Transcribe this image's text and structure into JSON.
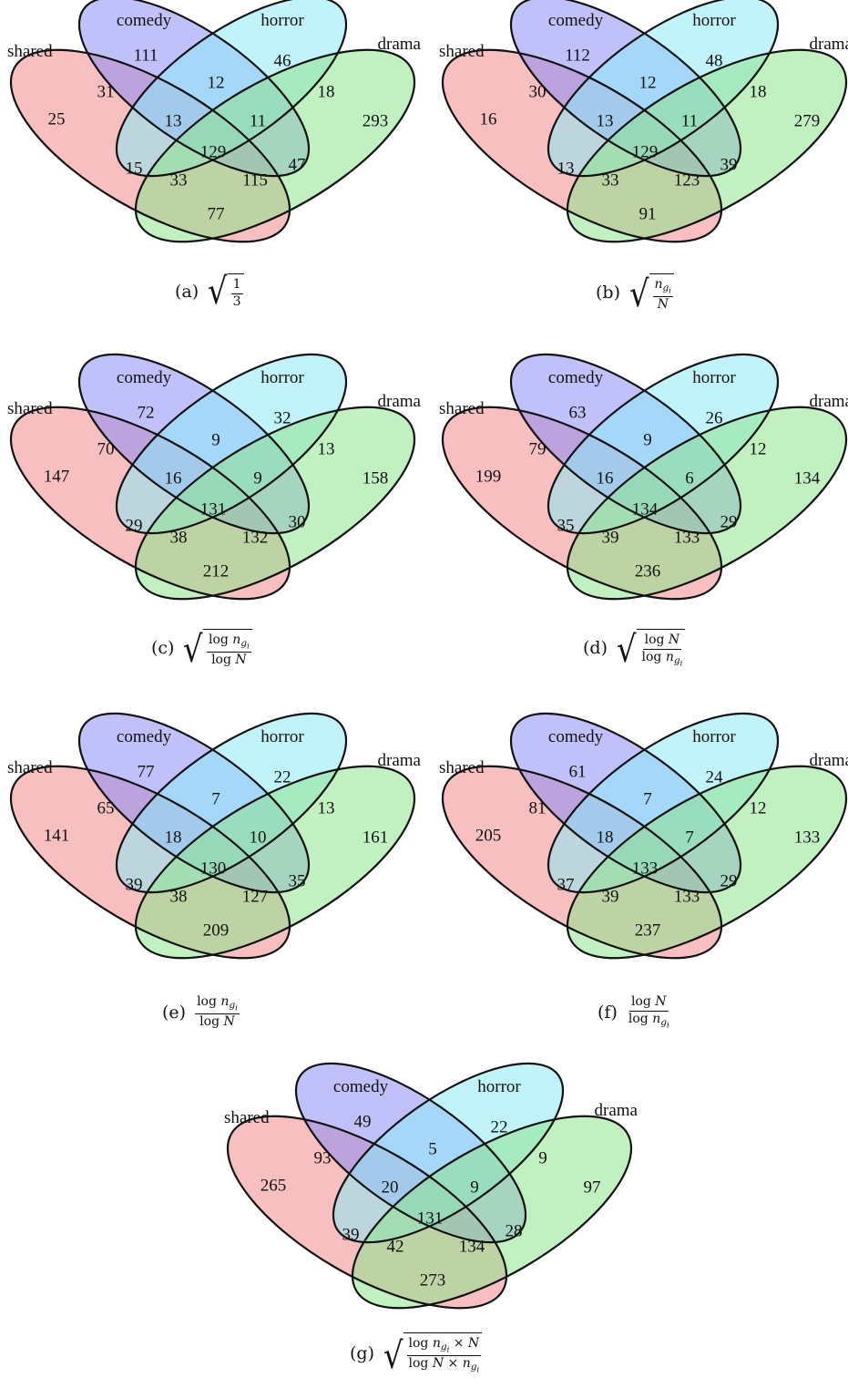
{
  "set_labels": {
    "shared": "shared",
    "comedy": "comedy",
    "horror": "horror",
    "drama": "drama"
  },
  "colors": {
    "shared": "#f08a8a",
    "comedy": "#8c8cf5",
    "horror": "#8ee9f5",
    "drama": "#8ee38e",
    "outline": "#111111"
  },
  "panels": [
    {
      "tag": "(a)",
      "region_counts": {
        "shared_only": "25",
        "comedy_only": "111",
        "horror_only": "46",
        "drama_only": "293",
        "shared_comedy": "31",
        "comedy_horror": "12",
        "horror_drama": "18",
        "shared_comedy_horror": "13",
        "comedy_horror_drama": "11",
        "shared_horror": "15",
        "comedy_drama": "47",
        "all_four": "129",
        "shared_horror_drama": "33",
        "shared_comedy_drama": "115",
        "shared_drama": "77"
      }
    },
    {
      "tag": "(b)",
      "region_counts": {
        "shared_only": "16",
        "comedy_only": "112",
        "horror_only": "48",
        "drama_only": "279",
        "shared_comedy": "30",
        "comedy_horror": "12",
        "horror_drama": "18",
        "shared_comedy_horror": "13",
        "comedy_horror_drama": "11",
        "shared_horror": "13",
        "comedy_drama": "39",
        "all_four": "129",
        "shared_horror_drama": "33",
        "shared_comedy_drama": "123",
        "shared_drama": "91"
      }
    },
    {
      "tag": "(c)",
      "region_counts": {
        "shared_only": "147",
        "comedy_only": "72",
        "horror_only": "32",
        "drama_only": "158",
        "shared_comedy": "70",
        "comedy_horror": "9",
        "horror_drama": "13",
        "shared_comedy_horror": "16",
        "comedy_horror_drama": "9",
        "shared_horror": "29",
        "comedy_drama": "30",
        "all_four": "131",
        "shared_horror_drama": "38",
        "shared_comedy_drama": "132",
        "shared_drama": "212"
      }
    },
    {
      "tag": "(d)",
      "region_counts": {
        "shared_only": "199",
        "comedy_only": "63",
        "horror_only": "26",
        "drama_only": "134",
        "shared_comedy": "79",
        "comedy_horror": "9",
        "horror_drama": "12",
        "shared_comedy_horror": "16",
        "comedy_horror_drama": "6",
        "shared_horror": "35",
        "comedy_drama": "29",
        "all_four": "134",
        "shared_horror_drama": "39",
        "shared_comedy_drama": "133",
        "shared_drama": "236"
      }
    },
    {
      "tag": "(e)",
      "region_counts": {
        "shared_only": "141",
        "comedy_only": "77",
        "horror_only": "22",
        "drama_only": "161",
        "shared_comedy": "65",
        "comedy_horror": "7",
        "horror_drama": "13",
        "shared_comedy_horror": "18",
        "comedy_horror_drama": "10",
        "shared_horror": "39",
        "comedy_drama": "35",
        "all_four": "130",
        "shared_horror_drama": "38",
        "shared_comedy_drama": "127",
        "shared_drama": "209"
      }
    },
    {
      "tag": "(f)",
      "region_counts": {
        "shared_only": "205",
        "comedy_only": "61",
        "horror_only": "24",
        "drama_only": "133",
        "shared_comedy": "81",
        "comedy_horror": "7",
        "horror_drama": "12",
        "shared_comedy_horror": "18",
        "comedy_horror_drama": "7",
        "shared_horror": "37",
        "comedy_drama": "29",
        "all_four": "133",
        "shared_horror_drama": "39",
        "shared_comedy_drama": "133",
        "shared_drama": "237"
      }
    },
    {
      "tag": "(g)",
      "region_counts": {
        "shared_only": "265",
        "comedy_only": "49",
        "horror_only": "22",
        "drama_only": "97",
        "shared_comedy": "93",
        "comedy_horror": "5",
        "horror_drama": "9",
        "shared_comedy_horror": "20",
        "comedy_horror_drama": "9",
        "shared_horror": "39",
        "comedy_drama": "28",
        "all_four": "131",
        "shared_horror_drama": "42",
        "shared_comedy_drama": "134",
        "shared_drama": "273"
      }
    }
  ],
  "captions": {
    "a": {
      "tag": "(a)",
      "num": "1",
      "den": "3"
    },
    "b": {
      "tag": "(b)",
      "num_main": "n",
      "num_sub": "g",
      "num_subsub": "i",
      "den": "N"
    },
    "c": {
      "tag": "(c)",
      "num_pre": "log ",
      "num_main": "n",
      "num_sub": "g",
      "num_subsub": "i",
      "den_pre": "log ",
      "den_var": "N"
    },
    "d": {
      "tag": "(d)",
      "num_pre": "log ",
      "num_var": "N",
      "den_pre": "log ",
      "den_main": "n",
      "den_sub": "g",
      "den_subsub": "i"
    },
    "e": {
      "tag": "(e)",
      "num_pre": "log ",
      "num_main": "n",
      "num_sub": "g",
      "num_subsub": "i",
      "den_pre": "log ",
      "den_var": "N"
    },
    "f": {
      "tag": "(f)",
      "num_pre": "log ",
      "num_var": "N",
      "den_pre": "log ",
      "den_main": "n",
      "den_sub": "g",
      "den_subsub": "i"
    },
    "g": {
      "tag": "(g)",
      "num_pre": "log ",
      "num_main": "n",
      "num_sub": "g",
      "num_subsub": "i",
      "num_post": " × ",
      "num_var": "N",
      "den_pre": "log ",
      "den_var": "N",
      "den_mid": " × ",
      "den_main": "n",
      "den_sub": "g",
      "den_subsub": "i"
    }
  }
}
